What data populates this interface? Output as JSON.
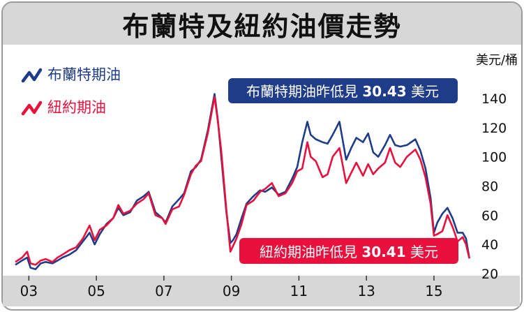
{
  "title": "布蘭特及紐約油價走勢",
  "colors": {
    "brent": "#1f3c88",
    "wti": "#e8103c",
    "axis_bar": "#d7d7d7"
  },
  "chart_data": {
    "type": "line",
    "unit_label": "美元/桶",
    "x_ticks": [
      "03",
      "05",
      "07",
      "09",
      "11",
      "13",
      "15"
    ],
    "x_tick_years": [
      2003,
      2005,
      2007,
      2009,
      2011,
      2013,
      2015
    ],
    "y_ticks": [
      20,
      40,
      60,
      80,
      100,
      120,
      140
    ],
    "xlim": [
      2002.6,
      2016.2
    ],
    "ylim": [
      20,
      150
    ],
    "legend": "top-left",
    "series": [
      {
        "name": "布蘭特期油",
        "key": "brent",
        "annotation": {
          "prefix": "布蘭特期油昨低見",
          "value": "30.43",
          "suffix": "美元"
        },
        "points": [
          [
            2002.6,
            26
          ],
          [
            2002.8,
            29
          ],
          [
            2002.95,
            31
          ],
          [
            2003.05,
            24
          ],
          [
            2003.2,
            23
          ],
          [
            2003.35,
            27
          ],
          [
            2003.5,
            28
          ],
          [
            2003.7,
            27
          ],
          [
            2003.85,
            29
          ],
          [
            2004.0,
            31
          ],
          [
            2004.2,
            33
          ],
          [
            2004.4,
            36
          ],
          [
            2004.6,
            42
          ],
          [
            2004.8,
            48
          ],
          [
            2004.95,
            40
          ],
          [
            2005.1,
            47
          ],
          [
            2005.3,
            54
          ],
          [
            2005.5,
            58
          ],
          [
            2005.65,
            65
          ],
          [
            2005.8,
            60
          ],
          [
            2006.0,
            62
          ],
          [
            2006.2,
            70
          ],
          [
            2006.4,
            73
          ],
          [
            2006.55,
            76
          ],
          [
            2006.75,
            62
          ],
          [
            2006.95,
            58
          ],
          [
            2007.05,
            55
          ],
          [
            2007.25,
            66
          ],
          [
            2007.45,
            71
          ],
          [
            2007.6,
            75
          ],
          [
            2007.8,
            90
          ],
          [
            2007.95,
            93
          ],
          [
            2008.1,
            98
          ],
          [
            2008.3,
            118
          ],
          [
            2008.5,
            143
          ],
          [
            2008.6,
            125
          ],
          [
            2008.7,
            100
          ],
          [
            2008.85,
            62
          ],
          [
            2008.97,
            41
          ],
          [
            2009.05,
            43
          ],
          [
            2009.15,
            47
          ],
          [
            2009.3,
            58
          ],
          [
            2009.45,
            68
          ],
          [
            2009.65,
            73
          ],
          [
            2009.85,
            77
          ],
          [
            2010.0,
            76
          ],
          [
            2010.2,
            79
          ],
          [
            2010.4,
            74
          ],
          [
            2010.6,
            76
          ],
          [
            2010.8,
            85
          ],
          [
            2010.95,
            93
          ],
          [
            2011.1,
            110
          ],
          [
            2011.25,
            124
          ],
          [
            2011.35,
            115
          ],
          [
            2011.5,
            112
          ],
          [
            2011.7,
            110
          ],
          [
            2011.85,
            109
          ],
          [
            2012.0,
            115
          ],
          [
            2012.2,
            124
          ],
          [
            2012.4,
            98
          ],
          [
            2012.55,
            106
          ],
          [
            2012.7,
            113
          ],
          [
            2012.9,
            110
          ],
          [
            2013.05,
            116
          ],
          [
            2013.2,
            103
          ],
          [
            2013.35,
            100
          ],
          [
            2013.55,
            108
          ],
          [
            2013.7,
            115
          ],
          [
            2013.85,
            108
          ],
          [
            2014.0,
            107
          ],
          [
            2014.2,
            108
          ],
          [
            2014.45,
            112
          ],
          [
            2014.6,
            104
          ],
          [
            2014.75,
            92
          ],
          [
            2014.9,
            72
          ],
          [
            2015.0,
            48
          ],
          [
            2015.1,
            55
          ],
          [
            2015.25,
            61
          ],
          [
            2015.4,
            65
          ],
          [
            2015.55,
            58
          ],
          [
            2015.7,
            48
          ],
          [
            2015.85,
            48
          ],
          [
            2015.95,
            44
          ],
          [
            2016.05,
            30.43
          ]
        ]
      },
      {
        "name": "紐約期油",
        "key": "wti",
        "annotation": {
          "prefix": "紐約期油昨低見",
          "value": "30.41",
          "suffix": "美元"
        },
        "points": [
          [
            2002.6,
            28
          ],
          [
            2002.8,
            31
          ],
          [
            2002.95,
            35
          ],
          [
            2003.05,
            27
          ],
          [
            2003.2,
            26
          ],
          [
            2003.35,
            29
          ],
          [
            2003.5,
            30
          ],
          [
            2003.7,
            28
          ],
          [
            2003.85,
            31
          ],
          [
            2004.0,
            33
          ],
          [
            2004.2,
            36
          ],
          [
            2004.4,
            38
          ],
          [
            2004.6,
            44
          ],
          [
            2004.8,
            53
          ],
          [
            2004.95,
            43
          ],
          [
            2005.1,
            50
          ],
          [
            2005.3,
            53
          ],
          [
            2005.5,
            58
          ],
          [
            2005.65,
            67
          ],
          [
            2005.8,
            61
          ],
          [
            2006.0,
            63
          ],
          [
            2006.2,
            68
          ],
          [
            2006.4,
            71
          ],
          [
            2006.55,
            75
          ],
          [
            2006.75,
            60
          ],
          [
            2006.95,
            58
          ],
          [
            2007.05,
            54
          ],
          [
            2007.25,
            64
          ],
          [
            2007.45,
            66
          ],
          [
            2007.6,
            74
          ],
          [
            2007.8,
            88
          ],
          [
            2007.95,
            94
          ],
          [
            2008.1,
            97
          ],
          [
            2008.3,
            116
          ],
          [
            2008.5,
            141
          ],
          [
            2008.6,
            124
          ],
          [
            2008.7,
            104
          ],
          [
            2008.85,
            64
          ],
          [
            2008.97,
            35
          ],
          [
            2009.05,
            39
          ],
          [
            2009.15,
            44
          ],
          [
            2009.3,
            54
          ],
          [
            2009.45,
            67
          ],
          [
            2009.65,
            70
          ],
          [
            2009.85,
            76
          ],
          [
            2010.0,
            78
          ],
          [
            2010.2,
            82
          ],
          [
            2010.4,
            73
          ],
          [
            2010.6,
            75
          ],
          [
            2010.8,
            82
          ],
          [
            2010.95,
            90
          ],
          [
            2011.1,
            92
          ],
          [
            2011.25,
            110
          ],
          [
            2011.35,
            100
          ],
          [
            2011.5,
            97
          ],
          [
            2011.7,
            86
          ],
          [
            2011.85,
            88
          ],
          [
            2012.0,
            100
          ],
          [
            2012.2,
            106
          ],
          [
            2012.4,
            82
          ],
          [
            2012.55,
            89
          ],
          [
            2012.7,
            96
          ],
          [
            2012.9,
            87
          ],
          [
            2013.05,
            95
          ],
          [
            2013.2,
            88
          ],
          [
            2013.35,
            92
          ],
          [
            2013.55,
            96
          ],
          [
            2013.7,
            106
          ],
          [
            2013.85,
            96
          ],
          [
            2014.0,
            93
          ],
          [
            2014.2,
            100
          ],
          [
            2014.45,
            105
          ],
          [
            2014.6,
            98
          ],
          [
            2014.75,
            86
          ],
          [
            2014.9,
            68
          ],
          [
            2015.0,
            46
          ],
          [
            2015.1,
            47
          ],
          [
            2015.25,
            49
          ],
          [
            2015.4,
            60
          ],
          [
            2015.55,
            52
          ],
          [
            2015.7,
            42
          ],
          [
            2015.85,
            45
          ],
          [
            2015.95,
            40
          ],
          [
            2016.05,
            30.41
          ]
        ]
      }
    ]
  }
}
